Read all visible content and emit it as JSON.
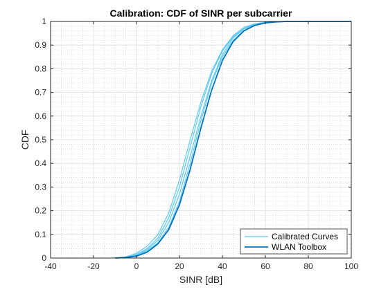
{
  "chart_data": {
    "type": "line",
    "title": "Calibration: CDF of SINR per subcarrier",
    "xlabel": "SINR [dB]",
    "ylabel": "CDF",
    "xlim": [
      -40,
      100
    ],
    "ylim": [
      0,
      1
    ],
    "xticks": [
      "-40",
      "-20",
      "0",
      "20",
      "40",
      "60",
      "80",
      "100"
    ],
    "yticks": [
      "0",
      "0.1",
      "0.2",
      "0.3",
      "0.4",
      "0.5",
      "0.6",
      "0.7",
      "0.8",
      "0.9",
      "1"
    ],
    "grid": "major and minor (dotted)",
    "legend_position": "bottom-right",
    "colors": {
      "calibrated": "#5ec8f0",
      "wlan": "#0072bd",
      "axis": "#262626"
    },
    "series": [
      {
        "name": "Calibrated Curves",
        "role": "calibrated",
        "x": [
          -10,
          -5,
          0,
          5,
          10,
          15,
          20,
          25,
          30,
          35,
          40,
          45,
          50,
          55,
          60,
          65,
          70,
          80,
          100
        ],
        "y": [
          0.0,
          0.005,
          0.02,
          0.05,
          0.1,
          0.19,
          0.33,
          0.5,
          0.66,
          0.79,
          0.88,
          0.94,
          0.975,
          0.99,
          0.997,
          0.999,
          1.0,
          1.0,
          1.0
        ]
      },
      {
        "name": "",
        "role": "calibrated",
        "x": [
          -10,
          -5,
          0,
          5,
          10,
          15,
          20,
          25,
          30,
          35,
          40,
          45,
          50,
          55,
          60,
          65,
          70,
          80,
          100
        ],
        "y": [
          0.0,
          0.004,
          0.015,
          0.04,
          0.085,
          0.17,
          0.3,
          0.47,
          0.64,
          0.78,
          0.875,
          0.935,
          0.97,
          0.988,
          0.996,
          0.999,
          1.0,
          1.0,
          1.0
        ]
      },
      {
        "name": "",
        "role": "calibrated",
        "x": [
          -10,
          -5,
          0,
          5,
          10,
          15,
          20,
          25,
          30,
          35,
          40,
          45,
          50,
          55,
          60,
          65,
          70,
          80,
          100
        ],
        "y": [
          0.0,
          0.003,
          0.012,
          0.035,
          0.075,
          0.15,
          0.27,
          0.43,
          0.6,
          0.75,
          0.86,
          0.93,
          0.968,
          0.986,
          0.995,
          0.998,
          1.0,
          1.0,
          1.0
        ]
      },
      {
        "name": "",
        "role": "calibrated",
        "x": [
          -10,
          -5,
          0,
          5,
          10,
          15,
          20,
          25,
          30,
          35,
          40,
          45,
          50,
          55,
          60,
          65,
          70,
          80,
          100
        ],
        "y": [
          0.0,
          0.003,
          0.01,
          0.03,
          0.065,
          0.13,
          0.24,
          0.4,
          0.58,
          0.74,
          0.85,
          0.92,
          0.962,
          0.984,
          0.994,
          0.998,
          1.0,
          1.0,
          1.0
        ]
      },
      {
        "name": "WLAN Toolbox",
        "role": "wlan",
        "x": [
          -10,
          -5,
          0,
          5,
          10,
          15,
          20,
          25,
          30,
          35,
          40,
          45,
          50,
          55,
          60,
          65,
          70,
          80,
          100
        ],
        "y": [
          0.0,
          0.002,
          0.008,
          0.025,
          0.06,
          0.12,
          0.225,
          0.375,
          0.55,
          0.71,
          0.835,
          0.915,
          0.96,
          0.983,
          0.994,
          0.998,
          1.0,
          1.0,
          1.0
        ]
      }
    ],
    "legend": [
      {
        "label": "Calibrated Curves",
        "role": "calibrated"
      },
      {
        "label": "WLAN Toolbox",
        "role": "wlan"
      }
    ]
  }
}
